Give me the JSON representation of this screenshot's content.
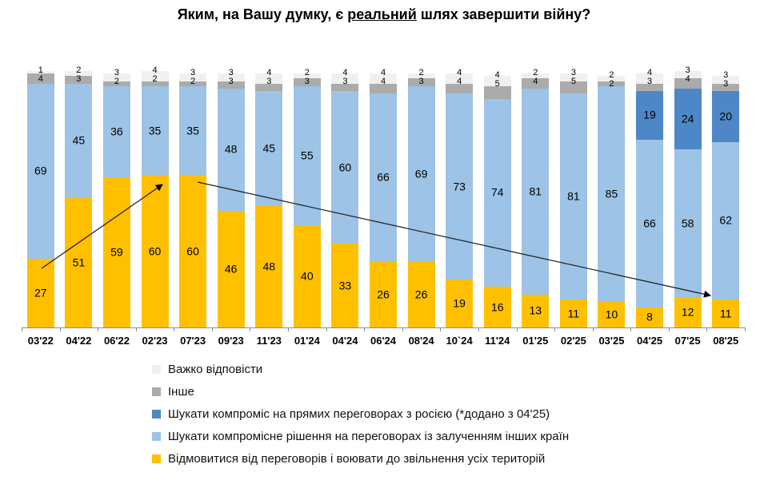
{
  "title": {
    "prefix": "Яким, на Вашу думку, є ",
    "underlined": "реальний",
    "suffix": " шлях завершити війну?"
  },
  "chart_data": {
    "type": "bar",
    "stacked": true,
    "percent_stacked": true,
    "title": "Яким, на Вашу думку, є реальний шлях завершити війну?",
    "xlabel": "",
    "ylabel": "%",
    "ylim": [
      0,
      100
    ],
    "grid": false,
    "legend_position": "bottom-left",
    "categories": [
      "03'22",
      "04'22",
      "06'22",
      "02'23",
      "07'23",
      "09'23",
      "11'23",
      "01'24",
      "04'24",
      "06'24",
      "08'24",
      "10`24",
      "11'24",
      "01'25",
      "02'25",
      "03'25",
      "04'25",
      "07'25",
      "08'25"
    ],
    "series": [
      {
        "name": "Відмовитися від переговорів і воювати до звільнення усіх територій",
        "color": "#FFC000",
        "values": [
          27,
          51,
          59,
          60,
          60,
          46,
          48,
          40,
          33,
          26,
          26,
          19,
          16,
          13,
          11,
          10,
          8,
          12,
          11
        ]
      },
      {
        "name": "Шукати компромісне рішення на переговорах із залученням інших країн",
        "color": "#9DC3E6",
        "values": [
          69,
          45,
          36,
          35,
          35,
          48,
          45,
          55,
          60,
          66,
          69,
          73,
          74,
          81,
          81,
          85,
          66,
          58,
          62
        ]
      },
      {
        "name": "Шукати компроміс на прямих переговорах з росією (*додано з 04'25)",
        "color": "#4E87C7",
        "values": [
          null,
          null,
          null,
          null,
          null,
          null,
          null,
          null,
          null,
          null,
          null,
          null,
          null,
          null,
          null,
          null,
          19,
          24,
          20
        ]
      },
      {
        "name": "Інше",
        "color": "#ABABAB",
        "values": [
          4,
          3,
          2,
          2,
          2,
          3,
          3,
          3,
          3,
          4,
          3,
          4,
          5,
          4,
          5,
          2,
          3,
          4,
          3
        ]
      },
      {
        "name": "Важко відповісти",
        "color": "#F0F0F0",
        "values": [
          1,
          2,
          3,
          4,
          3,
          3,
          4,
          2,
          4,
          4,
          2,
          4,
          4,
          2,
          3,
          2,
          4,
          3,
          3
        ]
      }
    ],
    "legend_order_top_to_bottom": [
      "Важко відповісти",
      "Інше",
      "Шукати компроміс на прямих переговорах з росією (*додано з 04'25)",
      "Шукати компромісне рішення на переговорах із залученням інших країн",
      "Відмовитися від переговорів і воювати до звільнення усіх територій"
    ],
    "annotations": [
      {
        "type": "arrow",
        "direction": "up",
        "from_category": "03'22",
        "from_value": 27,
        "to_category": "02'23",
        "to_value": 60
      },
      {
        "type": "arrow",
        "direction": "down",
        "from_category": "07'23",
        "from_value": 60,
        "to_category": "08'25",
        "to_value": 11
      }
    ]
  }
}
